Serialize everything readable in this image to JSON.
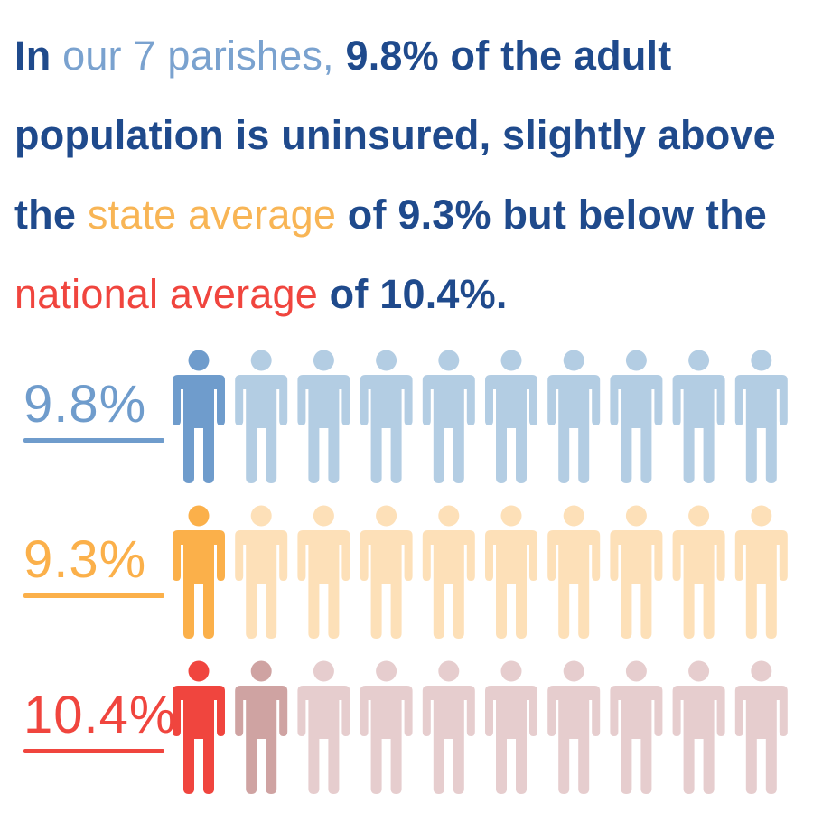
{
  "headline": {
    "segments": [
      {
        "text": "In ",
        "color": "#1f4a8c",
        "weight": "bold"
      },
      {
        "text": "our 7 parishes,",
        "color": "#7aa2cf",
        "weight": "normal"
      },
      {
        "text": " 9.8% of the adult population is uninsured, slightly above the ",
        "color": "#1f4a8c",
        "weight": "bold"
      },
      {
        "text": "state average",
        "color": "#f8b555",
        "weight": "normal"
      },
      {
        "text": " of 9.3% but below the ",
        "color": "#1f4a8c",
        "weight": "bold"
      },
      {
        "text": "national average",
        "color": "#f0453e",
        "weight": "normal"
      },
      {
        "text": " of 10.4%.",
        "color": "#1f4a8c",
        "weight": "bold"
      }
    ]
  },
  "chart_data": {
    "type": "pictograph",
    "icon": "person-icon",
    "icons_per_row": 10,
    "rows": [
      {
        "label": "9.8%",
        "value": 9.8,
        "color": "#6f9ccc",
        "faded_color": "#b3cde3"
      },
      {
        "label": "9.3%",
        "value": 9.3,
        "color": "#fbb04a",
        "faded_color": "#fde0b8"
      },
      {
        "label": "10.4%",
        "value": 10.4,
        "color": "#f0453e",
        "partial_color": "#cfa3a2",
        "faded_color": "#e6cdce"
      }
    ]
  }
}
